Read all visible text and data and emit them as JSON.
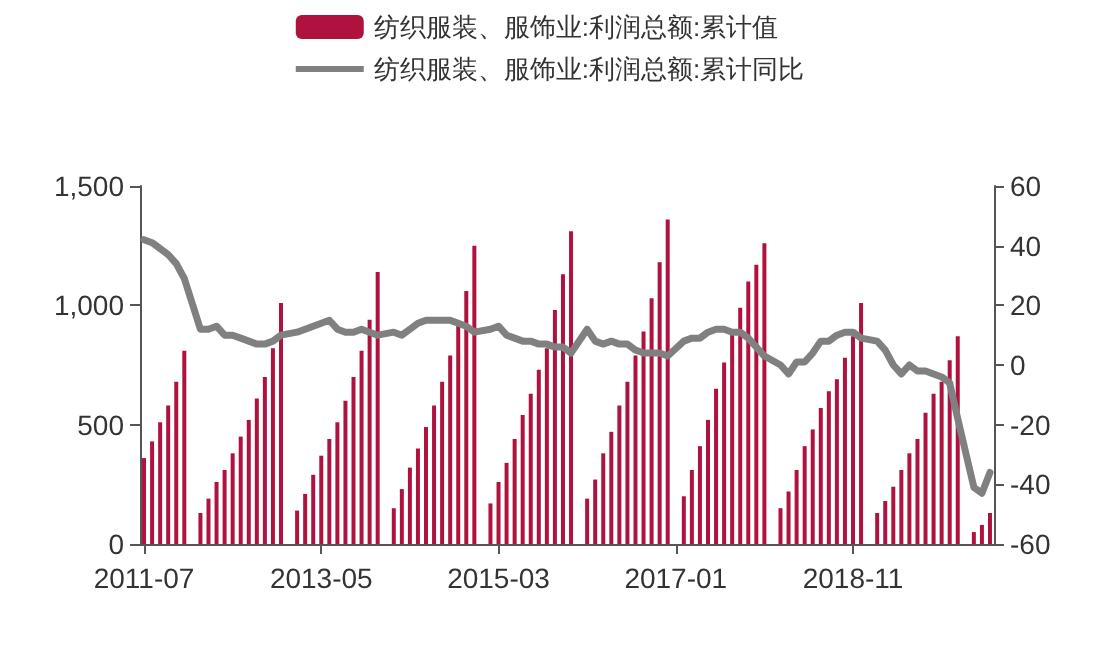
{
  "chart_data": {
    "type": "bar",
    "categories": [
      "2011-07",
      null,
      null,
      null,
      null,
      null,
      null,
      null,
      null,
      null,
      null,
      null,
      null,
      null,
      null,
      null,
      null,
      null,
      null,
      null,
      null,
      null,
      "2013-05",
      null,
      null,
      null,
      null,
      null,
      null,
      null,
      null,
      null,
      null,
      null,
      null,
      null,
      null,
      null,
      null,
      null,
      null,
      null,
      null,
      null,
      "2015-03",
      null,
      null,
      null,
      null,
      null,
      null,
      null,
      null,
      null,
      null,
      null,
      null,
      null,
      null,
      null,
      null,
      null,
      null,
      null,
      null,
      null,
      "2017-01",
      null,
      null,
      null,
      null,
      null,
      null,
      null,
      null,
      null,
      null,
      null,
      null,
      null,
      null,
      null,
      null,
      null,
      null,
      null,
      null,
      null,
      "2018-11",
      null,
      null,
      null,
      null,
      null,
      null,
      null,
      null,
      null,
      null,
      null,
      null,
      null,
      null,
      null,
      null,
      null
    ],
    "series": [
      {
        "name": "纺织服装、服饰业:利润总额:累计值",
        "color": "#b0123e",
        "values": [
          360,
          430,
          510,
          580,
          680,
          810,
          null,
          130,
          190,
          260,
          310,
          380,
          450,
          520,
          610,
          700,
          820,
          1010,
          null,
          140,
          210,
          290,
          370,
          440,
          510,
          600,
          700,
          810,
          940,
          1140,
          null,
          150,
          230,
          320,
          400,
          490,
          580,
          680,
          790,
          920,
          1060,
          1250,
          null,
          170,
          260,
          340,
          440,
          540,
          630,
          730,
          820,
          980,
          1130,
          1310,
          null,
          190,
          270,
          380,
          470,
          580,
          680,
          790,
          890,
          1030,
          1180,
          1360,
          null,
          200,
          310,
          410,
          520,
          650,
          760,
          880,
          990,
          1100,
          1170,
          1260,
          null,
          150,
          220,
          310,
          410,
          480,
          570,
          640,
          690,
          780,
          870,
          1010,
          null,
          130,
          180,
          240,
          310,
          380,
          440,
          550,
          630,
          680,
          770,
          870,
          null,
          50,
          80,
          130
        ]
      },
      {
        "name": "纺织服装、服饰业:利润总额:累计同比",
        "type": "line",
        "axis": "y2",
        "color": "#808080",
        "values": [
          42,
          41,
          39,
          37,
          34,
          29,
          null,
          12,
          12,
          13,
          10,
          10,
          9,
          8,
          7,
          7,
          8,
          10,
          null,
          11,
          12,
          13,
          14,
          15,
          12,
          11,
          11,
          12,
          11,
          10,
          null,
          11,
          10,
          12,
          14,
          15,
          15,
          15,
          15,
          14,
          13,
          11,
          null,
          12,
          13,
          10,
          9,
          8,
          8,
          7,
          7,
          6,
          6,
          4,
          null,
          12,
          8,
          7,
          8,
          7,
          7,
          5,
          4,
          4,
          4,
          3,
          null,
          8,
          9,
          9,
          11,
          12,
          12,
          11,
          11,
          9,
          6,
          3,
          null,
          0,
          -3,
          1,
          1,
          4,
          8,
          8,
          10,
          11,
          11,
          9,
          null,
          8,
          5,
          0,
          -3,
          0,
          -2,
          -2,
          -3,
          -4,
          -6,
          -18,
          null,
          -41,
          -43,
          -36
        ]
      }
    ],
    "ylim": [
      0,
      1500
    ],
    "yticks": [
      0,
      500,
      {
        "value": 1000,
        "label": "1,000"
      },
      {
        "value": 1500,
        "label": "1,500"
      }
    ],
    "y2lim": [
      -60,
      60
    ],
    "y2ticks": [
      -60,
      -40,
      -20,
      0,
      20,
      40,
      60
    ],
    "legend": "top",
    "grid": false,
    "marker": "none",
    "line_style": "solid"
  }
}
